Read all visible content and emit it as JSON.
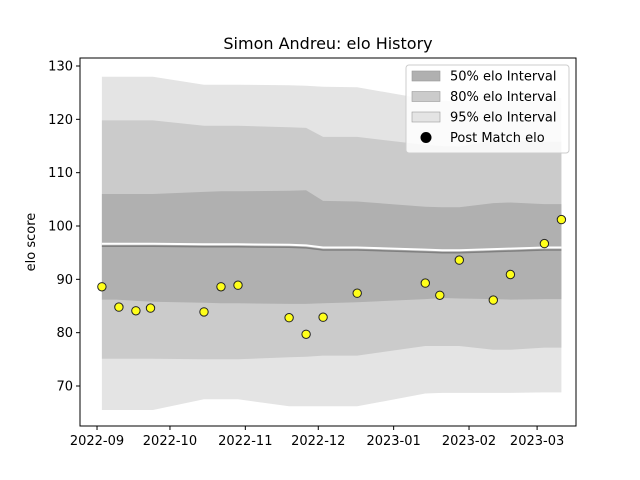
{
  "chart_data": {
    "type": "line",
    "title": "Simon Andreu: elo History",
    "xlabel": "",
    "ylabel": "elo score",
    "xlim": [
      "2022-08-25",
      "2023-03-17"
    ],
    "ylim": [
      62.5,
      131.5
    ],
    "x_ticks": [
      "2022-09-01",
      "2022-10-01",
      "2022-11-01",
      "2022-12-01",
      "2023-01-01",
      "2023-02-01",
      "2023-03-01"
    ],
    "x_tick_labels": [
      "2022-09",
      "2022-10",
      "2022-11",
      "2022-12",
      "2023-01",
      "2023-02",
      "2023-03"
    ],
    "y_ticks": [
      70,
      80,
      90,
      100,
      110,
      120,
      130
    ],
    "colors": {
      "band_50": "#b0b0b0",
      "band_80": "#cbcbcb",
      "band_95": "#e4e4e4",
      "mean_line": "#808080",
      "marker_fill": "#ffff1a",
      "marker_edge": "#222222"
    },
    "legend_position": "top-right",
    "legend": [
      {
        "label": "50% elo Interval",
        "kind": "patch",
        "key": "band_50"
      },
      {
        "label": "80% elo Interval",
        "kind": "patch",
        "key": "band_80"
      },
      {
        "label": "95% elo Interval",
        "kind": "patch",
        "key": "band_95"
      },
      {
        "label": "Post Match elo",
        "kind": "marker"
      }
    ],
    "band_dates": [
      "2022-09-03",
      "2022-09-09",
      "2022-09-16",
      "2022-09-24",
      "2022-10-15",
      "2022-10-22",
      "2022-10-29",
      "2022-11-19",
      "2022-11-26",
      "2022-12-03",
      "2022-12-17",
      "2023-01-14",
      "2023-01-21",
      "2023-01-28",
      "2023-02-11",
      "2023-02-18",
      "2023-03-04",
      "2023-03-11"
    ],
    "mean": [
      96.2,
      96.2,
      96.2,
      96.2,
      96.1,
      96.1,
      96.1,
      96.0,
      95.9,
      95.5,
      95.5,
      95.1,
      95.0,
      95.0,
      95.2,
      95.3,
      95.5,
      95.5
    ],
    "band_50": {
      "lower": [
        86.2,
        86.2,
        86.0,
        85.8,
        85.6,
        85.5,
        85.5,
        85.4,
        85.4,
        85.5,
        85.7,
        86.3,
        86.5,
        86.4,
        86.3,
        86.2,
        86.3,
        86.3
      ],
      "upper": [
        106.0,
        106.0,
        106.0,
        106.0,
        106.4,
        106.5,
        106.5,
        106.6,
        106.7,
        104.7,
        104.6,
        103.6,
        103.5,
        103.5,
        104.3,
        104.4,
        104.1,
        104.1
      ]
    },
    "band_80": {
      "lower": [
        75.1,
        75.1,
        75.1,
        75.1,
        75.0,
        75.0,
        75.0,
        75.4,
        75.5,
        75.7,
        75.7,
        77.5,
        77.5,
        77.5,
        76.8,
        76.8,
        77.2,
        77.2
      ],
      "upper": [
        119.8,
        119.8,
        119.8,
        119.8,
        118.8,
        118.8,
        118.8,
        118.5,
        118.4,
        116.7,
        116.7,
        115.2,
        115.0,
        114.9,
        116.0,
        116.0,
        115.8,
        115.8
      ]
    },
    "band_95": {
      "lower": [
        65.5,
        65.5,
        65.5,
        65.5,
        67.5,
        67.5,
        67.5,
        66.2,
        66.2,
        66.2,
        66.2,
        68.6,
        68.7,
        68.7,
        68.7,
        68.7,
        68.8,
        68.8
      ],
      "upper": [
        128.0,
        128.0,
        128.0,
        128.0,
        126.5,
        126.5,
        126.5,
        126.4,
        126.3,
        126.1,
        126.0,
        123.8,
        123.5,
        123.4,
        124.2,
        124.1,
        124.0,
        124.0
      ]
    },
    "series": [
      {
        "name": "Post Match elo",
        "x": [
          "2022-09-03",
          "2022-09-10",
          "2022-09-17",
          "2022-09-23",
          "2022-10-15",
          "2022-10-22",
          "2022-10-29",
          "2022-11-19",
          "2022-11-26",
          "2022-12-03",
          "2022-12-17",
          "2023-01-14",
          "2023-01-20",
          "2023-01-28",
          "2023-02-11",
          "2023-02-18",
          "2023-03-04",
          "2023-03-11"
        ],
        "y": [
          88.6,
          84.8,
          84.1,
          84.6,
          83.9,
          88.6,
          88.9,
          82.8,
          79.7,
          82.9,
          87.4,
          89.3,
          87.0,
          93.6,
          86.1,
          90.9,
          96.7,
          101.2
        ]
      }
    ]
  }
}
